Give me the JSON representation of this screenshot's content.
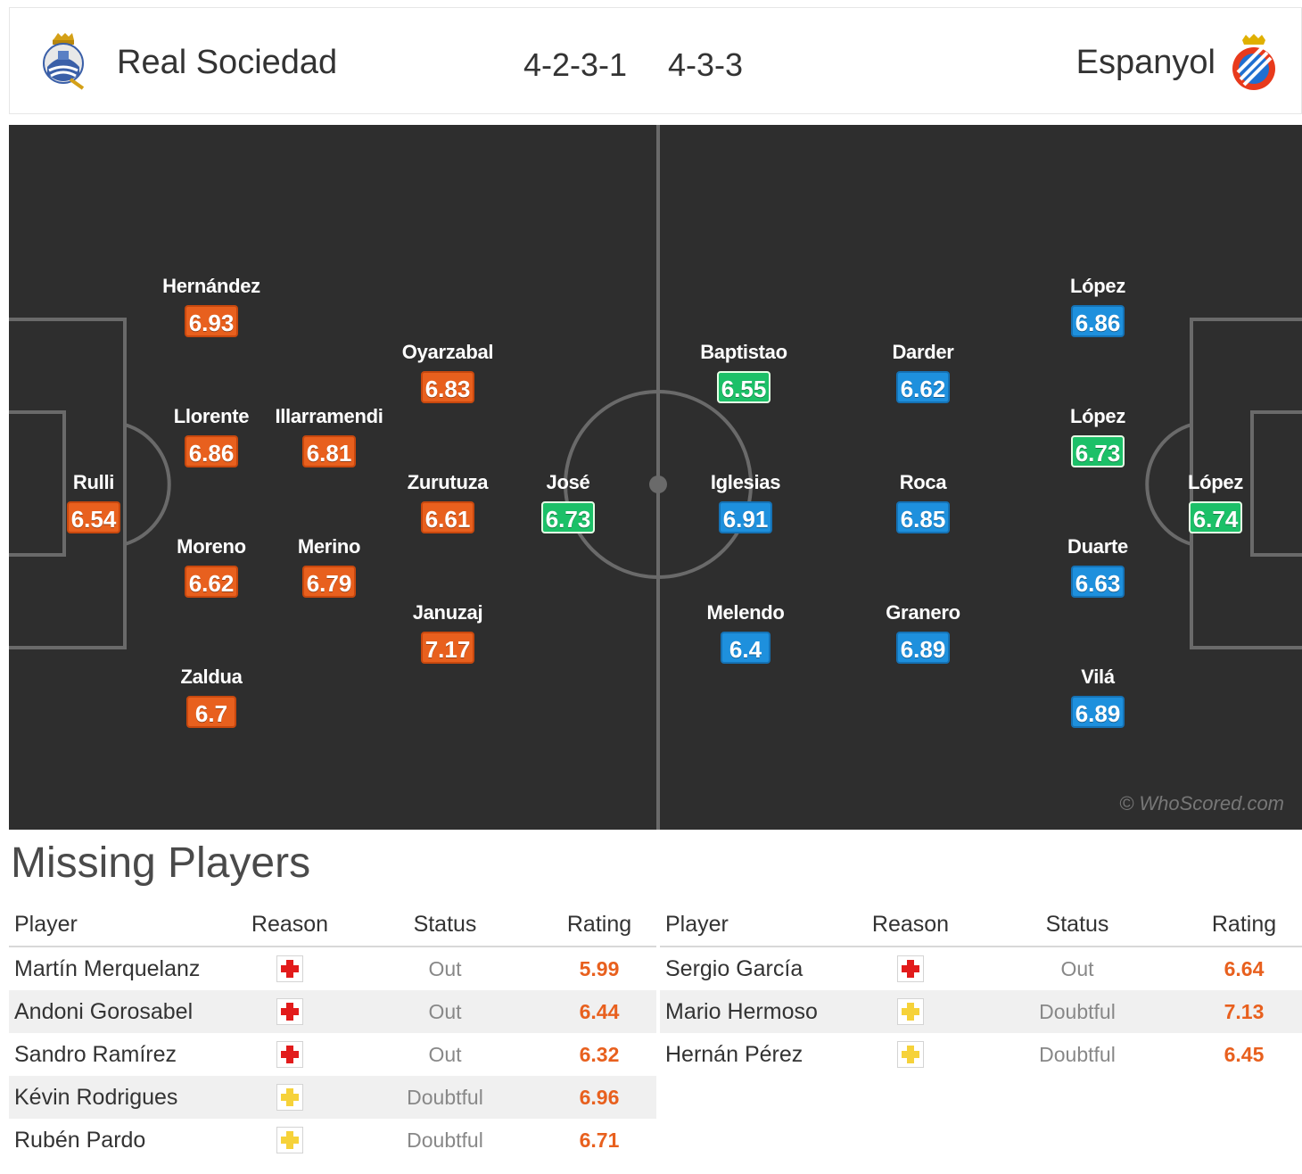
{
  "header": {
    "home_team": "Real Sociedad",
    "home_formation": "4-2-3-1",
    "away_formation": "4-3-3",
    "away_team": "Espanyol",
    "home_crest_icon": "real-sociedad-crest",
    "away_crest_icon": "espanyol-crest"
  },
  "colors": {
    "home_rating": "#e8601e",
    "away_rating": "#1e90dd",
    "best_rating": "#1cc068",
    "pitch": "#2e2e2e"
  },
  "pitch": {
    "watermark": "© WhoScored.com",
    "home_players": [
      {
        "name": "Rulli",
        "rating": "6.54",
        "best": false
      },
      {
        "name": "Hernández",
        "rating": "6.93",
        "best": false
      },
      {
        "name": "Llorente",
        "rating": "6.86",
        "best": false
      },
      {
        "name": "Moreno",
        "rating": "6.62",
        "best": false
      },
      {
        "name": "Zaldua",
        "rating": "6.7",
        "best": false
      },
      {
        "name": "Illarramendi",
        "rating": "6.81",
        "best": false
      },
      {
        "name": "Merino",
        "rating": "6.79",
        "best": false
      },
      {
        "name": "Oyarzabal",
        "rating": "6.83",
        "best": false
      },
      {
        "name": "Zurutuza",
        "rating": "6.61",
        "best": false
      },
      {
        "name": "Januzaj",
        "rating": "7.17",
        "best": false
      },
      {
        "name": "José",
        "rating": "6.73",
        "best": true
      }
    ],
    "away_players": [
      {
        "name": "López",
        "rating": "6.74",
        "best": true
      },
      {
        "name": "López",
        "rating": "6.86",
        "best": false
      },
      {
        "name": "López",
        "rating": "6.73",
        "best": true
      },
      {
        "name": "Duarte",
        "rating": "6.63",
        "best": false
      },
      {
        "name": "Vilá",
        "rating": "6.89",
        "best": false
      },
      {
        "name": "Darder",
        "rating": "6.62",
        "best": false
      },
      {
        "name": "Roca",
        "rating": "6.85",
        "best": false
      },
      {
        "name": "Granero",
        "rating": "6.89",
        "best": false
      },
      {
        "name": "Baptistao",
        "rating": "6.55",
        "best": true
      },
      {
        "name": "Iglesias",
        "rating": "6.91",
        "best": false
      },
      {
        "name": "Melendo",
        "rating": "6.4",
        "best": false
      }
    ]
  },
  "missing": {
    "title": "Missing Players",
    "columns": [
      "Player",
      "Reason",
      "Status",
      "Rating"
    ],
    "home": [
      {
        "player": "Martín Merquelanz",
        "reason": "injury",
        "status": "Out",
        "rating": "5.99"
      },
      {
        "player": "Andoni Gorosabel",
        "reason": "injury",
        "status": "Out",
        "rating": "6.44"
      },
      {
        "player": "Sandro Ramírez",
        "reason": "injury",
        "status": "Out",
        "rating": "6.32"
      },
      {
        "player": "Kévin Rodrigues",
        "reason": "doubtful",
        "status": "Doubtful",
        "rating": "6.96"
      },
      {
        "player": "Rubén Pardo",
        "reason": "doubtful",
        "status": "Doubtful",
        "rating": "6.71"
      }
    ],
    "away": [
      {
        "player": "Sergio García",
        "reason": "injury",
        "status": "Out",
        "rating": "6.64"
      },
      {
        "player": "Mario Hermoso",
        "reason": "doubtful",
        "status": "Doubtful",
        "rating": "7.13"
      },
      {
        "player": "Hernán Pérez",
        "reason": "doubtful",
        "status": "Doubtful",
        "rating": "6.45"
      }
    ]
  }
}
